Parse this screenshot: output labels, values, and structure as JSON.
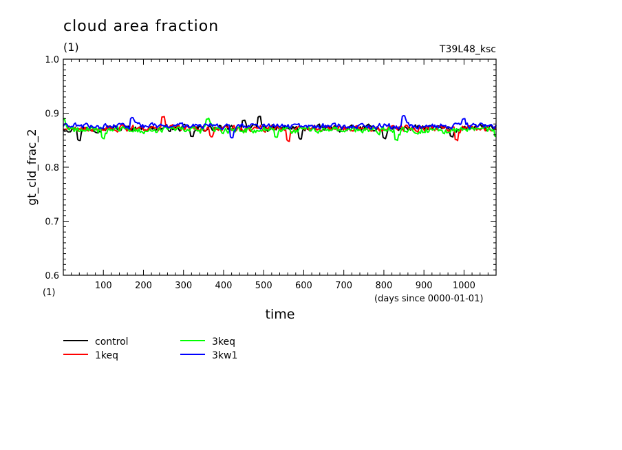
{
  "chart_data": {
    "type": "line",
    "title": "cloud area fraction",
    "units_label": "(1)",
    "run_label": "T39L48_ksc",
    "ylabel": "gt_cld_frac_2",
    "xlabel": "time",
    "x_units": "(days since 0000-01-01)",
    "x_units_short": "(1)",
    "xlim": [
      0,
      1080
    ],
    "ylim": [
      0.6,
      1.0
    ],
    "x_ticks": [
      100,
      200,
      300,
      400,
      500,
      600,
      700,
      800,
      900,
      1000
    ],
    "y_ticks": [
      0.6,
      0.7,
      0.8,
      0.9,
      1.0
    ],
    "x_tick_labels": [
      "100",
      "200",
      "300",
      "400",
      "500",
      "600",
      "700",
      "800",
      "900",
      "1000"
    ],
    "y_tick_labels": [
      "0.6",
      "0.7",
      "0.8",
      "0.9",
      "1.0"
    ],
    "grid": false,
    "legend_position": "bottom-left, below plot",
    "series": [
      {
        "name": "control",
        "color": "#000000",
        "mean": 0.872,
        "amplitude": 0.009,
        "x_step": 3,
        "excursions": [
          [
            40,
            0.852
          ],
          [
            320,
            0.858
          ],
          [
            450,
            0.886
          ],
          [
            490,
            0.892
          ],
          [
            590,
            0.854
          ],
          [
            800,
            0.855
          ],
          [
            970,
            0.858
          ]
        ]
      },
      {
        "name": "1keq",
        "color": "#ff0000",
        "mean": 0.872,
        "amplitude": 0.009,
        "x_step": 3,
        "excursions": [
          [
            250,
            0.892
          ],
          [
            370,
            0.858
          ],
          [
            560,
            0.85
          ],
          [
            980,
            0.852
          ]
        ]
      },
      {
        "name": "3keq",
        "color": "#00ff00",
        "mean": 0.869,
        "amplitude": 0.01,
        "x_step": 3,
        "excursions": [
          [
            0,
            0.888
          ],
          [
            100,
            0.855
          ],
          [
            360,
            0.888
          ],
          [
            530,
            0.856
          ],
          [
            830,
            0.852
          ],
          [
            1080,
            0.858
          ]
        ]
      },
      {
        "name": "3kw1",
        "color": "#0000ff",
        "mean": 0.876,
        "amplitude": 0.008,
        "x_step": 3,
        "excursions": [
          [
            170,
            0.89
          ],
          [
            420,
            0.856
          ],
          [
            850,
            0.894
          ],
          [
            1000,
            0.888
          ]
        ]
      }
    ]
  }
}
